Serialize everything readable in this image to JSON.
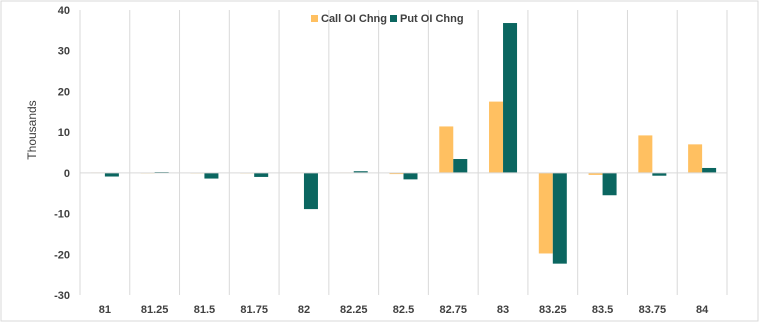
{
  "chart_data": {
    "type": "bar",
    "title": "",
    "xlabel": "",
    "ylabel": "Thousands",
    "categories": [
      "81",
      "81.25",
      "81.5",
      "81.75",
      "82",
      "82.25",
      "82.5",
      "82.75",
      "83",
      "83.25",
      "83.5",
      "83.75",
      "84"
    ],
    "yticks": [
      "40",
      "30",
      "20",
      "10",
      "0",
      "-10",
      "-20",
      "-30"
    ],
    "ylim": [
      -30,
      40
    ],
    "grid": "vertical",
    "legend_position": "top-center",
    "series": [
      {
        "name": "Call OI Chng",
        "color": "#FFC061",
        "values": [
          0.1,
          0,
          0,
          -0.1,
          0.1,
          0.1,
          -0.3,
          11.4,
          17.5,
          -19.8,
          -0.5,
          9.2,
          7.0
        ]
      },
      {
        "name": "Put OI Chng",
        "color": "#0B6660",
        "values": [
          -0.9,
          0.2,
          -1.4,
          -1.0,
          -8.9,
          0.4,
          -1.6,
          3.4,
          36.8,
          -22.3,
          -5.5,
          -0.7,
          1.2
        ]
      }
    ]
  }
}
